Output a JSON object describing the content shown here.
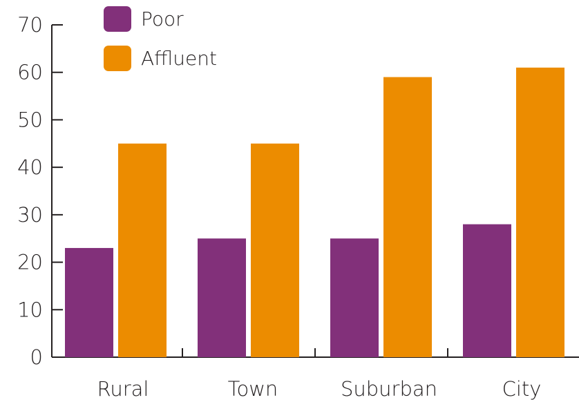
{
  "chart_data": {
    "type": "bar",
    "categories": [
      "Rural",
      "Town",
      "Suburban",
      "City"
    ],
    "series": [
      {
        "name": "Poor",
        "values": [
          23,
          25,
          25,
          28
        ],
        "color": "#82307a"
      },
      {
        "name": "Affluent",
        "values": [
          45,
          45,
          59,
          61
        ],
        "color": "#ec8c00"
      }
    ],
    "title": "",
    "xlabel": "",
    "ylabel": "",
    "ylim": [
      0,
      70
    ],
    "yticks": [
      0,
      10,
      20,
      30,
      40,
      50,
      60,
      70
    ],
    "grid": false,
    "legend_position": "top-left"
  }
}
